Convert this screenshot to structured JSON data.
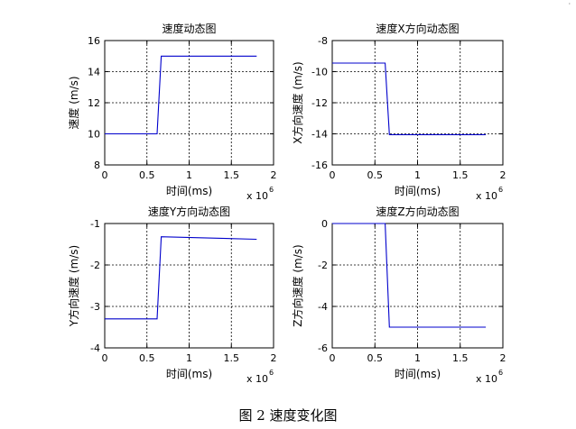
{
  "figure": {
    "caption": "图 2 速度变化图",
    "corner_mark": "'"
  },
  "chart_data": [
    {
      "type": "line",
      "title": "速度动态图",
      "xlabel": "时间(ms)",
      "ylabel": "速度 (m/s)",
      "x_multiplier": "x 10",
      "x_multiplier_exp": "6",
      "xlim": [
        0,
        2
      ],
      "ylim": [
        8,
        16
      ],
      "xticks": [
        0,
        0.5,
        1,
        1.5,
        2
      ],
      "yticks": [
        8,
        10,
        12,
        14,
        16
      ],
      "grid": "dashed",
      "series_color": "#0000cc",
      "x": [
        0,
        0.62,
        0.67,
        1.8
      ],
      "y": [
        10,
        10,
        15,
        15
      ]
    },
    {
      "type": "line",
      "title": "速度X方向动态图",
      "xlabel": "时间(ms)",
      "ylabel": "X方向速度 (m/s)",
      "x_multiplier": "x 10",
      "x_multiplier_exp": "6",
      "xlim": [
        0,
        2
      ],
      "ylim": [
        -16,
        -8
      ],
      "xticks": [
        0,
        0.5,
        1,
        1.5,
        2
      ],
      "yticks": [
        -16,
        -14,
        -12,
        -10,
        -8
      ],
      "grid": "dashed",
      "series_color": "#0000cc",
      "x": [
        0,
        0.62,
        0.67,
        1.8
      ],
      "y": [
        -9.45,
        -9.45,
        -14.05,
        -14.05
      ]
    },
    {
      "type": "line",
      "title": "速度Y方向动态图",
      "xlabel": "时间(ms)",
      "ylabel": "Y方向速度 (m/s)",
      "x_multiplier": "x 10",
      "x_multiplier_exp": "6",
      "xlim": [
        0,
        2
      ],
      "ylim": [
        -4,
        -1
      ],
      "xticks": [
        0,
        0.5,
        1,
        1.5,
        2
      ],
      "yticks": [
        -4,
        -3,
        -2,
        -1
      ],
      "grid": "dashed",
      "series_color": "#0000cc",
      "x": [
        0,
        0.62,
        0.67,
        1.8
      ],
      "y": [
        -3.3,
        -3.3,
        -1.32,
        -1.38
      ]
    },
    {
      "type": "line",
      "title": "速度Z方向动态图",
      "xlabel": "时间(ms)",
      "ylabel": "Z方向速度 (m/s)",
      "x_multiplier": "x 10",
      "x_multiplier_exp": "6",
      "xlim": [
        0,
        2
      ],
      "ylim": [
        -6,
        0
      ],
      "xticks": [
        0,
        0.5,
        1,
        1.5,
        2
      ],
      "yticks": [
        -6,
        -4,
        -2,
        0
      ],
      "grid": "dashed",
      "series_color": "#0000cc",
      "x": [
        0,
        0.62,
        0.67,
        1.8
      ],
      "y": [
        0,
        0,
        -5.0,
        -5.0
      ]
    }
  ]
}
